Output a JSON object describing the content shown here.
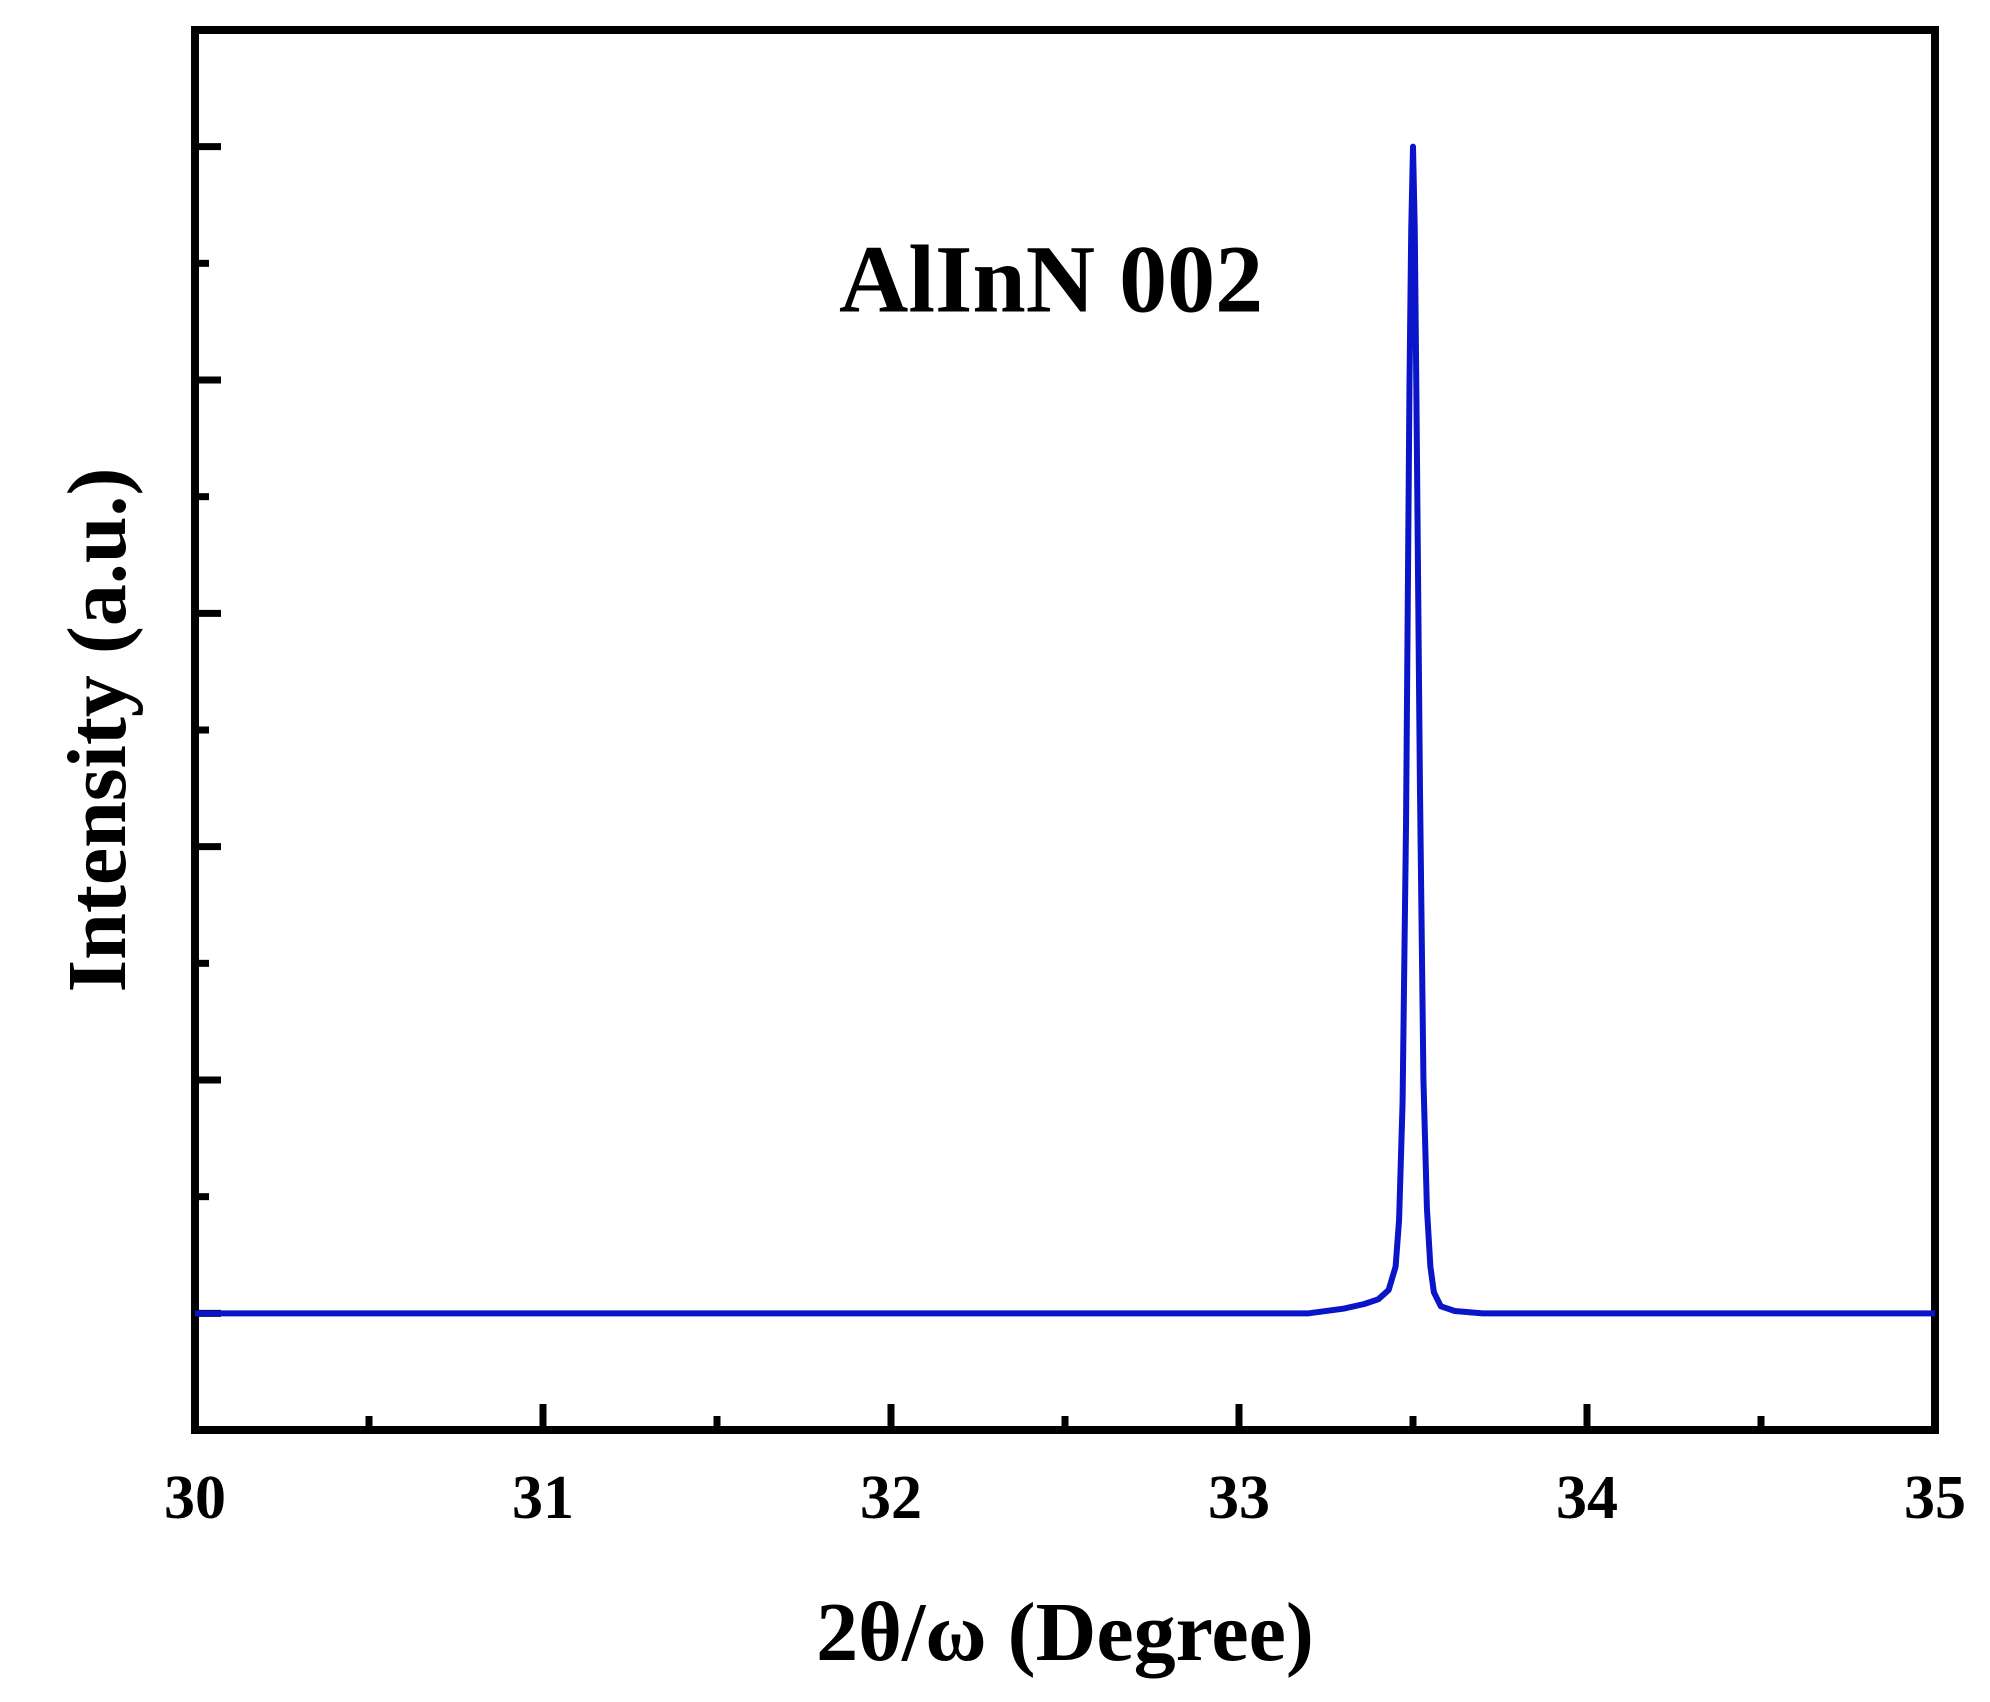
{
  "chart_data": {
    "type": "line",
    "title": "",
    "xlabel": "2θ/ω (Degree)",
    "ylabel": "Intensity (a.u.)",
    "xlim": [
      30,
      35
    ],
    "ylim": [
      -0.1,
      1.1
    ],
    "x_ticks": [
      30,
      31,
      32,
      33,
      34,
      35
    ],
    "x_tick_labels": [
      "30",
      "31",
      "32",
      "33",
      "34",
      "35"
    ],
    "y_tick_labels_shown": false,
    "grid": false,
    "legend": "none",
    "annotation": {
      "text": "AlInN 002",
      "x": 33.0,
      "y": 0.85
    },
    "series": [
      {
        "color": "#0a14c8",
        "x": [
          30.0,
          33.2,
          33.3,
          33.36,
          33.4,
          33.43,
          33.45,
          33.46,
          33.47,
          33.48,
          33.49,
          33.495,
          33.5,
          33.505,
          33.51,
          33.52,
          33.53,
          33.54,
          33.55,
          33.56,
          33.58,
          33.62,
          33.7,
          35.0
        ],
        "y": [
          0.0,
          0.0,
          0.004,
          0.008,
          0.012,
          0.02,
          0.04,
          0.08,
          0.18,
          0.42,
          0.8,
          0.93,
          1.0,
          0.93,
          0.78,
          0.45,
          0.2,
          0.09,
          0.04,
          0.018,
          0.006,
          0.002,
          0.0,
          0.0
        ]
      }
    ]
  }
}
